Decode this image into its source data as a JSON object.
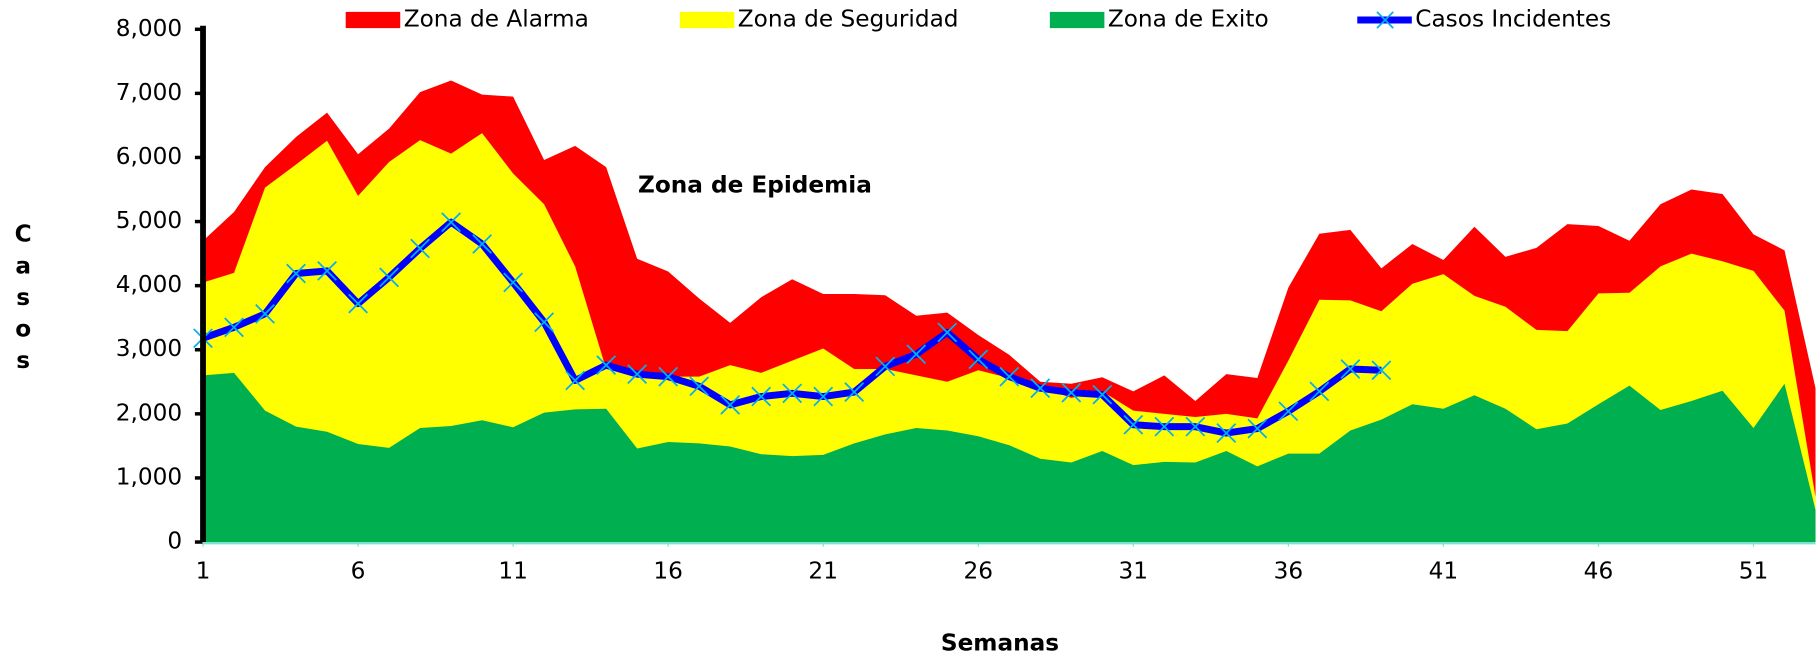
{
  "chart_data": {
    "type": "area",
    "annotation": "Zona de Epidemia",
    "x_label": "Semanas",
    "y_label": "Casos",
    "x": [
      1,
      2,
      3,
      4,
      5,
      6,
      7,
      8,
      9,
      10,
      11,
      12,
      13,
      14,
      15,
      16,
      17,
      18,
      19,
      20,
      21,
      22,
      23,
      24,
      25,
      26,
      27,
      28,
      29,
      30,
      31,
      32,
      33,
      34,
      35,
      36,
      37,
      38,
      39,
      40,
      41,
      42,
      43,
      44,
      45,
      46,
      47,
      48,
      49,
      50,
      51,
      52,
      53
    ],
    "xlim": [
      1,
      53
    ],
    "xticks": [
      1,
      6,
      11,
      16,
      21,
      26,
      31,
      36,
      41,
      46,
      51
    ],
    "ylim": [
      0,
      8000
    ],
    "yticks": [
      0,
      {
        "value": 1000,
        "label": "1,000"
      },
      {
        "value": 2000,
        "label": "2,000"
      },
      {
        "value": 3000,
        "label": "3,000"
      },
      {
        "value": 4000,
        "label": "4,000"
      },
      {
        "value": 5000,
        "label": "5,000"
      },
      {
        "value": 6000,
        "label": "6,000"
      },
      {
        "value": 7000,
        "label": "7,000"
      },
      {
        "value": 8000,
        "label": "8,000"
      }
    ],
    "series": [
      {
        "name": "Zona de Alarma",
        "color": "#ff0000",
        "kind": "area",
        "values": [
          4700,
          5150,
          5850,
          6320,
          6700,
          6050,
          6450,
          7020,
          7200,
          6980,
          6950,
          5960,
          6180,
          5850,
          4420,
          4220,
          3800,
          3420,
          3820,
          4100,
          3870,
          3870,
          3850,
          3530,
          3580,
          3230,
          2920,
          2500,
          2470,
          2570,
          2350,
          2600,
          2200,
          2620,
          2560,
          3970,
          4810,
          4870,
          4270,
          4650,
          4400,
          4920,
          4450,
          4590,
          4960,
          4930,
          4700,
          5270,
          5500,
          5430,
          4800,
          4550,
          2400
        ]
      },
      {
        "name": "Zona de Seguridad",
        "color": "#ffff00",
        "kind": "area",
        "values": [
          4050,
          4200,
          5530,
          5890,
          6260,
          5400,
          5930,
          6270,
          6060,
          6380,
          5750,
          5270,
          4300,
          2700,
          2650,
          2580,
          2580,
          2760,
          2640,
          2830,
          3020,
          2700,
          2700,
          2600,
          2500,
          2680,
          2560,
          2420,
          2250,
          2350,
          2050,
          2000,
          1950,
          2000,
          1930,
          2830,
          3780,
          3770,
          3600,
          4030,
          4180,
          3840,
          3670,
          3310,
          3290,
          3880,
          3890,
          4300,
          4500,
          4380,
          4230,
          3610,
          700
        ]
      },
      {
        "name": "Zona de Exito",
        "color": "#00b050",
        "kind": "area",
        "values": [
          2600,
          2640,
          2050,
          1800,
          1720,
          1530,
          1470,
          1780,
          1810,
          1900,
          1790,
          2020,
          2070,
          2080,
          1460,
          1560,
          1540,
          1490,
          1370,
          1340,
          1360,
          1540,
          1680,
          1780,
          1740,
          1650,
          1510,
          1300,
          1240,
          1420,
          1200,
          1250,
          1240,
          1420,
          1180,
          1380,
          1380,
          1740,
          1910,
          2150,
          2080,
          2290,
          2080,
          1760,
          1850,
          2150,
          2440,
          2060,
          2200,
          2360,
          1780,
          2470,
          500
        ]
      },
      {
        "name": "Casos Incidentes",
        "color": "#0000ff",
        "marker_color": "#00b0f0",
        "kind": "line",
        "values": [
          3180,
          3350,
          3560,
          4190,
          4230,
          3720,
          4130,
          4580,
          4990,
          4650,
          4050,
          3430,
          2520,
          2760,
          2620,
          2580,
          2430,
          2140,
          2270,
          2320,
          2270,
          2340,
          2740,
          2930,
          3270,
          2850,
          2580,
          2400,
          2330,
          2300,
          1830,
          1800,
          1800,
          1700,
          1770,
          2040,
          2350,
          2700,
          2680,
          null,
          null,
          null,
          null,
          null,
          null,
          null,
          null,
          null,
          null,
          null,
          null,
          null,
          null
        ]
      }
    ]
  }
}
